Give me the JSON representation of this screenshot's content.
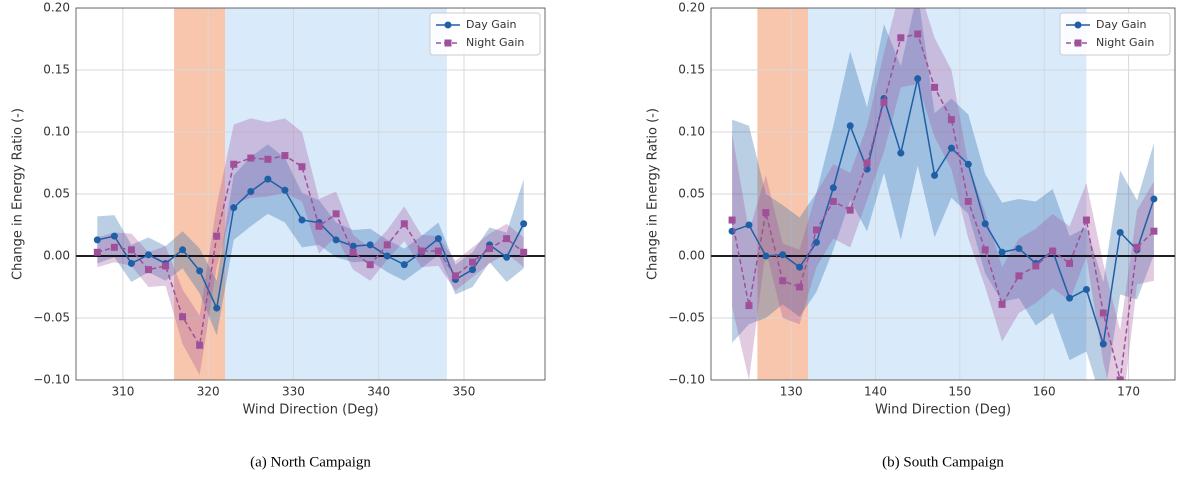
{
  "chart_data": [
    {
      "type": "line",
      "caption": "(a) North Campaign",
      "xlabel": "Wind Direction (Deg)",
      "ylabel": "Change in Energy Ratio (-)",
      "x": [
        307,
        309,
        311,
        313,
        315,
        317,
        319,
        321,
        323,
        325,
        327,
        329,
        331,
        333,
        335,
        337,
        339,
        341,
        343,
        345,
        347,
        349,
        351,
        353,
        355,
        357
      ],
      "series": [
        {
          "name": "Day Gain",
          "color": "#1f5fa6",
          "marker": "o",
          "dashed": false,
          "values": [
            0.013,
            0.016,
            -0.006,
            0.001,
            -0.006,
            0.005,
            -0.012,
            -0.042,
            0.039,
            0.052,
            0.062,
            0.053,
            0.029,
            0.027,
            0.013,
            0.008,
            0.009,
            0.0,
            -0.007,
            0.003,
            0.014,
            -0.019,
            -0.011,
            0.009,
            -0.001,
            0.026
          ],
          "error": [
            0.019,
            0.017,
            0.015,
            0.014,
            0.014,
            0.015,
            0.018,
            0.022,
            0.026,
            0.028,
            0.028,
            0.026,
            0.022,
            0.018,
            0.014,
            0.013,
            0.013,
            0.013,
            0.013,
            0.013,
            0.013,
            0.012,
            0.014,
            0.014,
            0.02,
            0.036
          ]
        },
        {
          "name": "Night Gain",
          "color": "#a0509a",
          "marker": "s",
          "dashed": true,
          "values": [
            0.003,
            0.007,
            0.005,
            -0.011,
            -0.008,
            -0.049,
            -0.072,
            0.016,
            0.074,
            0.079,
            0.078,
            0.081,
            0.072,
            0.024,
            0.034,
            0.003,
            -0.007,
            0.009,
            0.026,
            0.004,
            0.004,
            -0.016,
            -0.005,
            0.006,
            0.014,
            0.003
          ],
          "error": [
            0.012,
            0.012,
            0.013,
            0.014,
            0.016,
            0.022,
            0.024,
            0.025,
            0.032,
            0.032,
            0.03,
            0.03,
            0.028,
            0.022,
            0.018,
            0.014,
            0.013,
            0.012,
            0.014,
            0.013,
            0.012,
            0.012,
            0.012,
            0.012,
            0.012,
            0.012
          ]
        }
      ],
      "spans": [
        {
          "start": 316,
          "end": 322,
          "color": "#f8c6ac"
        },
        {
          "start": 322,
          "end": 348,
          "color": "#d9eafb"
        }
      ],
      "hline": 0,
      "xlim": [
        304.5,
        359.5
      ],
      "xticks": [
        310,
        320,
        330,
        340,
        350
      ],
      "ylim": [
        -0.1,
        0.2
      ],
      "yticks": [
        {
          "value": -0.1,
          "label": "−0.10"
        },
        {
          "value": -0.05,
          "label": "−0.05"
        },
        {
          "value": 0,
          "label": "0.00"
        },
        {
          "value": 0.05,
          "label": "0.05"
        },
        {
          "value": 0.1,
          "label": "0.10"
        },
        {
          "value": 0.15,
          "label": "0.15"
        },
        {
          "value": 0.2,
          "label": "0.20"
        }
      ],
      "grid": true,
      "legend": "upper right"
    },
    {
      "type": "line",
      "caption": "(b) South Campaign",
      "xlabel": "Wind Direction (Deg)",
      "ylabel": "Change in Energy Ratio (-)",
      "x": [
        123,
        125,
        127,
        129,
        131,
        133,
        135,
        137,
        139,
        141,
        143,
        145,
        147,
        149,
        151,
        153,
        155,
        157,
        159,
        161,
        163,
        165,
        167,
        169,
        171,
        173
      ],
      "series": [
        {
          "name": "Day Gain",
          "color": "#1f5fa6",
          "marker": "o",
          "dashed": false,
          "values": [
            0.02,
            0.025,
            0.0,
            0.001,
            -0.009,
            0.011,
            0.055,
            0.105,
            0.07,
            0.127,
            0.083,
            0.143,
            0.065,
            0.087,
            0.074,
            0.026,
            0.003,
            0.006,
            -0.006,
            0.004,
            -0.034,
            -0.027,
            -0.071,
            0.019,
            0.005,
            0.046
          ],
          "error": [
            0.09,
            0.08,
            0.05,
            0.04,
            0.04,
            0.04,
            0.05,
            0.06,
            0.05,
            0.06,
            0.07,
            0.07,
            0.05,
            0.04,
            0.04,
            0.04,
            0.04,
            0.04,
            0.05,
            0.05,
            0.05,
            0.05,
            0.05,
            0.05,
            0.04,
            0.045
          ]
        },
        {
          "name": "Night Gain",
          "color": "#a0509a",
          "marker": "s",
          "dashed": true,
          "values": [
            0.029,
            -0.04,
            0.035,
            -0.02,
            -0.025,
            0.021,
            0.044,
            0.037,
            0.075,
            0.124,
            0.176,
            0.179,
            0.136,
            0.11,
            0.044,
            0.005,
            -0.039,
            -0.016,
            -0.008,
            0.004,
            -0.006,
            0.029,
            -0.046,
            -0.1,
            0.007,
            0.02
          ],
          "error": [
            0.07,
            0.06,
            0.03,
            0.03,
            0.03,
            0.03,
            0.03,
            0.03,
            0.03,
            0.04,
            0.04,
            0.04,
            0.04,
            0.04,
            0.03,
            0.03,
            0.03,
            0.03,
            0.03,
            0.03,
            0.03,
            0.03,
            0.04,
            0.04,
            0.03,
            0.04
          ]
        }
      ],
      "spans": [
        {
          "start": 126,
          "end": 132,
          "color": "#f8c6ac"
        },
        {
          "start": 132,
          "end": 165,
          "color": "#d9eafb"
        }
      ],
      "hline": 0,
      "xlim": [
        120.5,
        175.5
      ],
      "xticks": [
        130,
        140,
        150,
        160,
        170
      ],
      "ylim": [
        -0.1,
        0.2
      ],
      "yticks": [
        {
          "value": -0.1,
          "label": "−0.10"
        },
        {
          "value": -0.05,
          "label": "−0.05"
        },
        {
          "value": 0,
          "label": "0.00"
        },
        {
          "value": 0.05,
          "label": "0.05"
        },
        {
          "value": 0.1,
          "label": "0.10"
        },
        {
          "value": 0.15,
          "label": "0.15"
        },
        {
          "value": 0.2,
          "label": "0.20"
        }
      ],
      "grid": true,
      "legend": "upper right"
    }
  ]
}
